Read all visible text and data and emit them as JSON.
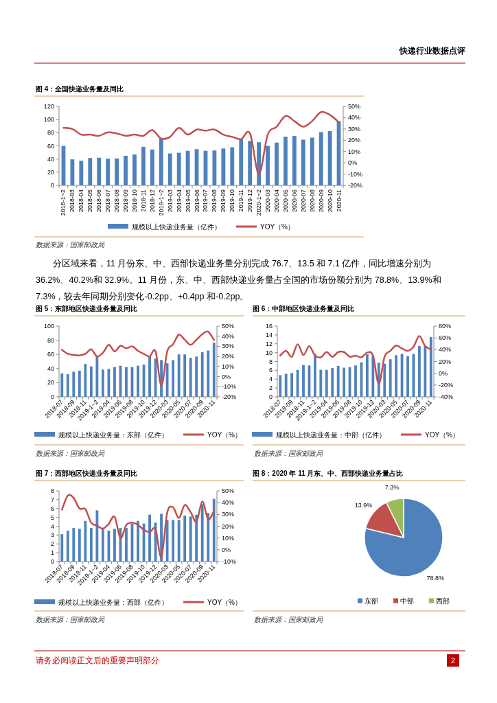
{
  "chart_data": [
    {
      "type": "bar",
      "title": "图 4：全国快递业务量及同比",
      "categories": [
        "2018-1~2",
        "2018-03",
        "2018-04",
        "2018-05",
        "2018-06",
        "2018-07",
        "2018-08",
        "2018-09",
        "2018-10",
        "2018-11",
        "2018-12",
        "2019-1~2",
        "2019-03",
        "2019-04",
        "2019-05",
        "2019-06",
        "2019-07",
        "2019-08",
        "2019-09",
        "2019-10",
        "2019-11",
        "2019-12",
        "2020-1~2",
        "2020-03",
        "2020-04",
        "2020-05",
        "2020-06",
        "2020-07",
        "2020-08",
        "2020-09",
        "2020-10",
        "2020-11"
      ],
      "series": [
        {
          "name": "规模以上快递业务量（亿件）",
          "color": "#4f81bd",
          "values": [
            60,
            39.5,
            37.5,
            41.5,
            42,
            40.5,
            41,
            45,
            47,
            58.5,
            54.5,
            72,
            48.5,
            49.5,
            52.5,
            55,
            52.5,
            53,
            56,
            58,
            70,
            67.5,
            65.5,
            60,
            65,
            74,
            75,
            69.5,
            72.5,
            81,
            82.5,
            97.5
          ]
        },
        {
          "name": "YOY（%）",
          "color": "#c0504d",
          "type": "line",
          "axis": "y2",
          "values": [
            31,
            30,
            25,
            25,
            24,
            27,
            26,
            24,
            25,
            24,
            29,
            21.5,
            23,
            31,
            25,
            29.5,
            28.5,
            29.5,
            25,
            23,
            21,
            26,
            -10,
            25,
            32,
            41.5,
            37,
            32,
            37,
            45,
            42.5,
            36
          ]
        }
      ],
      "ylim": [
        0,
        120
      ],
      "yticks": [
        0,
        20,
        40,
        60,
        80,
        100,
        120
      ],
      "y2lim": [
        -20,
        50
      ],
      "y2ticks": [
        {
          "value": -20,
          "label": "-20%"
        },
        {
          "value": -10,
          "label": "-10%"
        },
        {
          "value": 0,
          "label": "0%"
        },
        {
          "value": 10,
          "label": "10%"
        },
        {
          "value": 20,
          "label": "20%"
        },
        {
          "value": 30,
          "label": "30%"
        },
        {
          "value": 40,
          "label": "40%"
        },
        {
          "value": 50,
          "label": "50%"
        }
      ],
      "legend": "bottom",
      "annotations": [
        "快递行业数据点评",
        "数据来源：国家邮政局",
        "分区域来看，11 月份东、中、西部快递业务量分别完成 76.7、13.5 和 7.1 亿件，同比增速分别为 36.2%、40.2%和 32.9%。11 月份，东、中、西部快递业务量占全国的市场份额分别为 78.8%、13.9%和 7.3%，较去年同期分别变化-0.2pp、+0.4pp 和-0.2pp。"
      ]
    },
    {
      "type": "bar",
      "title": "图 5：东部地区快递业务量及同比",
      "categories": [
        "2018-07",
        null,
        "2018-09",
        null,
        "2018-11",
        null,
        "2019-1~2",
        null,
        "2019-04",
        null,
        "2019-06",
        null,
        "2019-08",
        null,
        "2019-10",
        null,
        "2019-12",
        null,
        "2020-03",
        null,
        "2020-05",
        null,
        "2020-07",
        null,
        "2020-09",
        null,
        "2020-11"
      ],
      "series": [
        {
          "name": "规模以上快递业务量：东部（亿件）",
          "color": "#4f81bd",
          "values": [
            33,
            32,
            35.5,
            37,
            46.5,
            43,
            58,
            38.5,
            39.5,
            42,
            44,
            42,
            42,
            44,
            45.5,
            58,
            54,
            52,
            47.5,
            52,
            60,
            60,
            55,
            57,
            63,
            65.5,
            76.7
          ]
        },
        {
          "name": "YOY（%）",
          "color": "#c0504d",
          "type": "line",
          "axis": "y2",
          "values": [
            26.5,
            22.5,
            21.5,
            21,
            22.5,
            27,
            20,
            23.5,
            31.5,
            25,
            30.5,
            28,
            30,
            25.5,
            22.5,
            20,
            25,
            -9,
            25,
            32,
            41.5,
            36.5,
            31.5,
            36.5,
            42,
            44.5,
            36.2
          ]
        }
      ],
      "ylim": [
        0,
        100
      ],
      "yticks": [
        0,
        20,
        40,
        60,
        80,
        100
      ],
      "y2lim": [
        -20,
        50
      ],
      "y2ticks": [
        {
          "value": -20,
          "label": "-20%"
        },
        {
          "value": -10,
          "label": "-10%"
        },
        {
          "value": 0,
          "label": "0%"
        },
        {
          "value": 10,
          "label": "10%"
        },
        {
          "value": 20,
          "label": "20%"
        },
        {
          "value": 30,
          "label": "30%"
        },
        {
          "value": 40,
          "label": "40%"
        },
        {
          "value": 50,
          "label": "50%"
        }
      ],
      "legend": "bottom",
      "annotations": [
        "数据来源：国家邮政局"
      ]
    },
    {
      "type": "bar",
      "title": "图 6：中部地区快递业务量及同比",
      "categories": [
        "2018-07",
        null,
        "2018-09",
        null,
        "2018-11",
        null,
        "2019-1~2",
        null,
        "2019-04",
        null,
        "2019-06",
        null,
        "2019-08",
        null,
        "2019-10",
        null,
        "2019-12",
        null,
        "2020-03",
        null,
        "2020-05",
        null,
        "2020-07",
        null,
        "2020-09",
        null,
        "2020-11"
      ],
      "series": [
        {
          "name": "规模以上快递业务量：中部（亿件）",
          "color": "#4f81bd",
          "values": [
            4.9,
            5.2,
            5.4,
            6.1,
            7.2,
            7.1,
            9.7,
            6.1,
            6.1,
            6.5,
            7,
            6.6,
            6.7,
            7.1,
            7.8,
            9.6,
            9.3,
            7.7,
            7.5,
            8.5,
            9.4,
            9.7,
            9.2,
            9.7,
            11.5,
            11.5,
            13.5
          ]
        },
        {
          "name": "YOY（%）",
          "color": "#c0504d",
          "type": "line",
          "axis": "y2",
          "values": [
            30,
            38,
            28,
            49,
            31,
            46,
            30,
            27,
            36,
            28,
            36,
            36,
            28,
            30,
            27,
            35,
            30,
            -18,
            28,
            38,
            47,
            42,
            38,
            45,
            63,
            46,
            40.2
          ]
        }
      ],
      "ylim": [
        0,
        16
      ],
      "yticks": [
        0,
        2,
        4,
        6,
        8,
        10,
        12,
        14,
        16
      ],
      "y2lim": [
        -40,
        80
      ],
      "y2ticks": [
        {
          "value": -40,
          "label": "-40%"
        },
        {
          "value": -20,
          "label": "-20%"
        },
        {
          "value": 0,
          "label": "0%"
        },
        {
          "value": 20,
          "label": "20%"
        },
        {
          "value": 40,
          "label": "40%"
        },
        {
          "value": 60,
          "label": "60%"
        },
        {
          "value": 80,
          "label": "80%"
        }
      ],
      "legend": "bottom",
      "annotations": [
        "数据来源：国家邮政局"
      ]
    },
    {
      "type": "bar",
      "title": "图 7：西部地区快递业务量及同比",
      "categories": [
        "2018-07",
        null,
        "2018-09",
        null,
        "2018-11",
        null,
        "2019-1~2",
        null,
        "2019-04",
        null,
        "2019-06",
        null,
        "2019-08",
        null,
        "2019-10",
        null,
        "2019-12",
        null,
        "2020-03",
        null,
        "2020-05",
        null,
        "2020-07",
        null,
        "2020-09",
        null,
        "2020-11"
      ],
      "series": [
        {
          "name": "规模以上快递业务量：西部（亿件）",
          "color": "#4f81bd",
          "values": [
            3.1,
            3.5,
            3.8,
            3.7,
            4.6,
            3.8,
            5.8,
            3.7,
            3.5,
            3.7,
            3.8,
            3.8,
            4.3,
            4.6,
            4.3,
            5.3,
            4.4,
            5.4,
            4.7,
            4.7,
            4.7,
            5.2,
            5.1,
            5.3,
            6.5,
            5.5,
            7.1
          ]
        },
        {
          "name": "YOY（%）",
          "color": "#c0504d",
          "type": "line",
          "axis": "y2",
          "values": [
            34,
            46,
            44,
            35,
            34.5,
            23,
            20.5,
            18,
            22,
            28,
            10,
            21,
            23,
            21,
            17,
            15,
            17.5,
            -6,
            31.5,
            36,
            27,
            38,
            32,
            24,
            41,
            26,
            32.9
          ]
        }
      ],
      "ylim": [
        0,
        8
      ],
      "yticks": [
        0,
        1,
        2,
        3,
        4,
        5,
        6,
        7,
        8
      ],
      "y2lim": [
        -10,
        50
      ],
      "y2ticks": [
        {
          "value": -10,
          "label": "-10%"
        },
        {
          "value": 0,
          "label": "0%"
        },
        {
          "value": 10,
          "label": "10%"
        },
        {
          "value": 20,
          "label": "20%"
        },
        {
          "value": 30,
          "label": "30%"
        },
        {
          "value": 40,
          "label": "40%"
        },
        {
          "value": 50,
          "label": "50%"
        }
      ],
      "legend": "bottom",
      "annotations": [
        "数据来源：国家邮政局"
      ]
    },
    {
      "type": "pie",
      "title": "图 8：2020 年 11 月东、中、西部快递业务量占比",
      "categories": [
        "东部",
        "中部",
        "西部"
      ],
      "values": [
        78.8,
        13.9,
        7.3
      ],
      "colors": [
        "#4f81bd",
        "#c0504d",
        "#9bbb59"
      ],
      "value_labels": [
        "78.8%",
        "13.9%",
        "7.3%"
      ],
      "legend": "bottom",
      "annotations": [
        "数据来源：国家邮政局",
        "请务必阅读正文后的重要声明部分",
        "2"
      ]
    }
  ]
}
